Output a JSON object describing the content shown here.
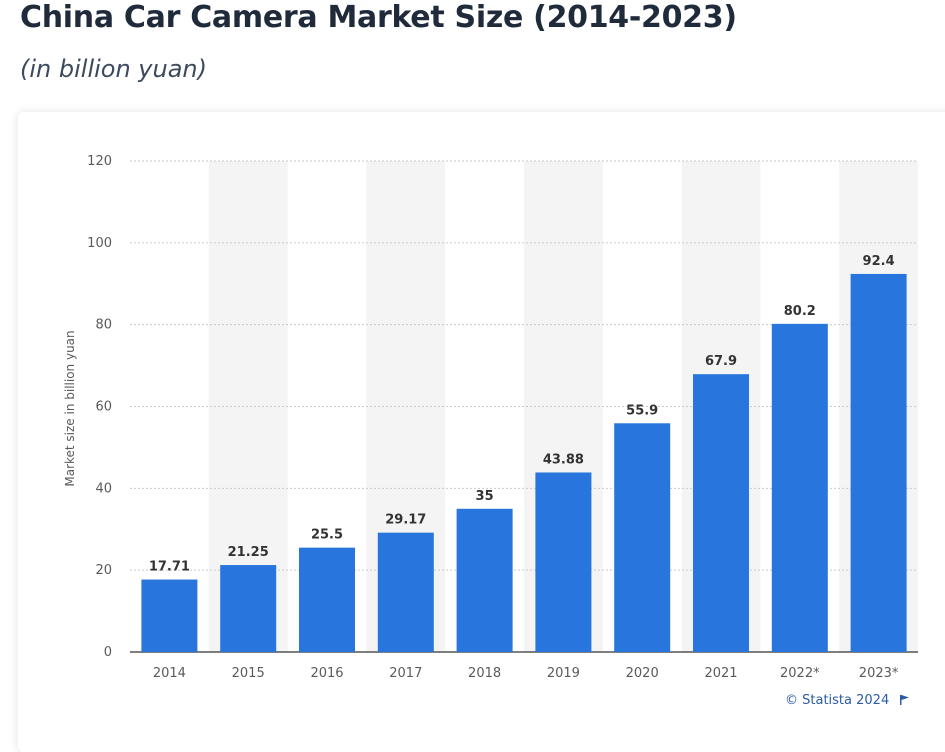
{
  "header": {
    "title": "China Car Camera Market Size (2014-2023)",
    "subtitle": "(in billion yuan)"
  },
  "footer": {
    "credit": "© Statista 2024",
    "flag_icon": "flag-icon"
  },
  "colors": {
    "bar": "#2876dd",
    "band": "#f4f4f4",
    "grid": "#c9c9c9",
    "axis_text": "#5a5a5a",
    "label_text": "#333333",
    "credit": "#2a5ca8"
  },
  "chart_data": {
    "type": "bar",
    "title": "China Car Camera Market Size (2014-2023)",
    "subtitle": "(in billion yuan)",
    "xlabel": "",
    "ylabel": "Market size in billion yuan",
    "categories": [
      "2014",
      "2015",
      "2016",
      "2017",
      "2018",
      "2019",
      "2020",
      "2021",
      "2022*",
      "2023*"
    ],
    "values": [
      17.71,
      21.25,
      25.5,
      29.17,
      35,
      43.88,
      55.9,
      67.9,
      80.2,
      92.4
    ],
    "value_labels": [
      "17.71",
      "21.25",
      "25.5",
      "29.17",
      "35",
      "43.88",
      "55.9",
      "67.9",
      "80.2",
      "92.4"
    ],
    "ylim": [
      0,
      120
    ],
    "yticks": [
      0,
      20,
      40,
      60,
      80,
      100,
      120
    ],
    "grid": true,
    "legend": "none"
  }
}
